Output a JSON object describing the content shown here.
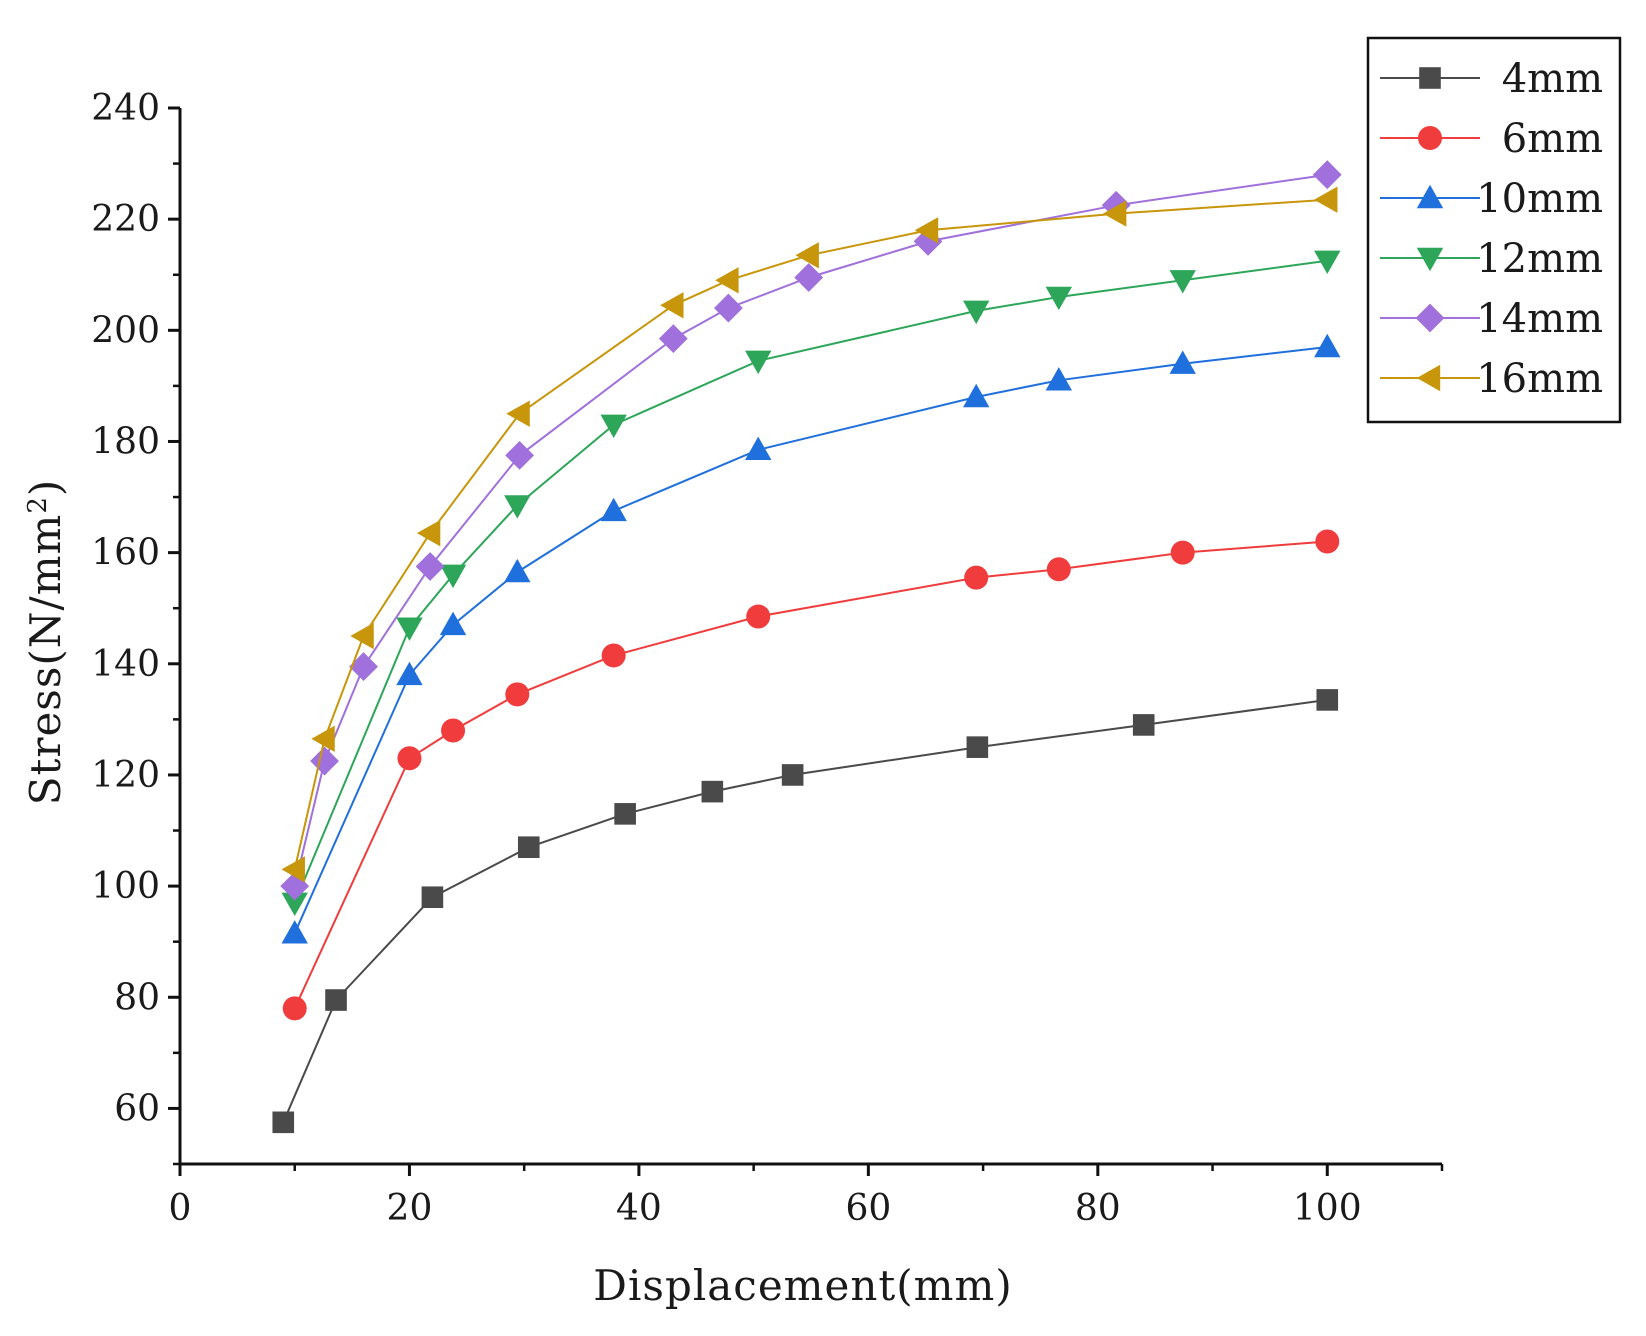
{
  "chart_data": {
    "type": "line",
    "title": "",
    "xlabel": "Displacement(mm)",
    "ylabel": "Stress(N/mm",
    "ylabel_sup": "2",
    "ylabel_close": ")",
    "xlim": [
      0,
      110
    ],
    "ylim": [
      50,
      240
    ],
    "x_ticks": [
      0,
      20,
      40,
      60,
      80,
      100
    ],
    "y_ticks": [
      60,
      80,
      100,
      120,
      140,
      160,
      180,
      200,
      220,
      240
    ],
    "grid": false,
    "legend_position": "top-right",
    "series": [
      {
        "name": "4mm",
        "color": "#4a4a4a",
        "marker": "square",
        "x": [
          9,
          13.6,
          22,
          30.4,
          38.8,
          46.4,
          53.4,
          69.5,
          84,
          100
        ],
        "y": [
          57.5,
          79.5,
          98,
          107,
          113,
          117,
          120,
          125,
          129,
          133.5
        ]
      },
      {
        "name": "6mm",
        "color": "#f03c3c",
        "marker": "circle",
        "x": [
          10,
          20,
          23.8,
          29.4,
          37.8,
          50.4,
          69.4,
          76.6,
          87.4,
          100
        ],
        "y": [
          78,
          123,
          128,
          134.5,
          141.5,
          148.5,
          155.5,
          157,
          160,
          162
        ]
      },
      {
        "name": "10mm",
        "color": "#1f6fdc",
        "marker": "triangle-up",
        "x": [
          10,
          20,
          23.8,
          29.4,
          37.8,
          50.4,
          69.4,
          76.6,
          87.4,
          100
        ],
        "y": [
          91.5,
          138,
          147,
          156.5,
          167.5,
          178.5,
          188,
          191,
          194,
          197
        ]
      },
      {
        "name": "12mm",
        "color": "#2ea65a",
        "marker": "triangle-down",
        "x": [
          10,
          20,
          23.8,
          29.4,
          37.8,
          50.4,
          69.4,
          76.6,
          87.4,
          100
        ],
        "y": [
          97,
          146.5,
          156,
          168.5,
          183,
          194.5,
          203.5,
          206,
          209,
          212.5
        ]
      },
      {
        "name": "14mm",
        "color": "#a070dc",
        "marker": "diamond",
        "x": [
          10,
          12.6,
          16,
          21.8,
          29.6,
          43,
          47.8,
          54.8,
          65.2,
          81.6,
          100
        ],
        "y": [
          100,
          122.5,
          139.5,
          157.5,
          177.5,
          198.5,
          204,
          209.5,
          216,
          222.5,
          228
        ]
      },
      {
        "name": "16mm",
        "color": "#c8960a",
        "marker": "triangle-left",
        "x": [
          10,
          12.6,
          16,
          21.8,
          29.6,
          43,
          47.8,
          54.8,
          65.2,
          81.6,
          100
        ],
        "y": [
          103,
          126.5,
          145,
          163.5,
          185,
          204.5,
          209,
          213.5,
          218,
          221,
          223.5
        ]
      }
    ]
  }
}
